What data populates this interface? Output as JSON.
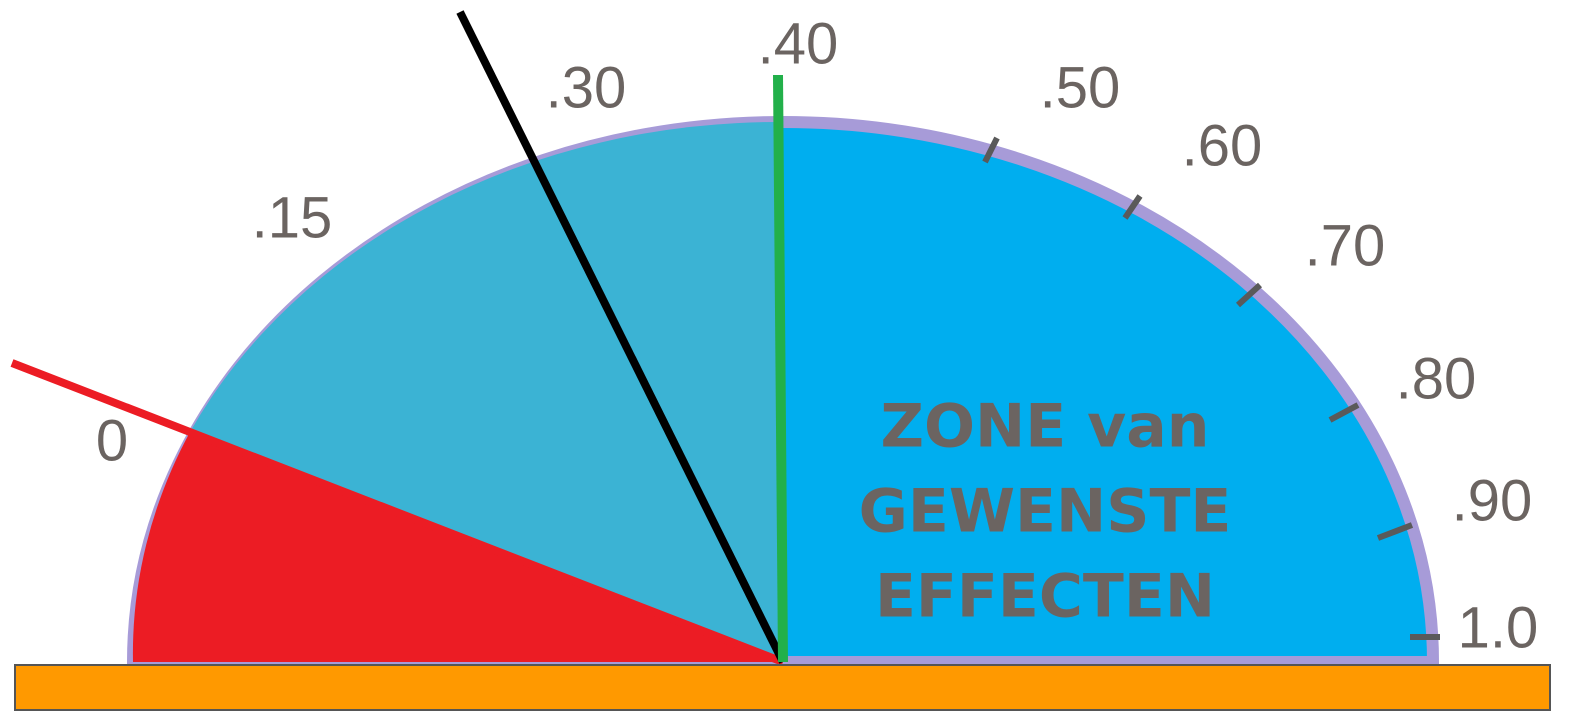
{
  "gauge": {
    "scale_labels": [
      "0",
      ".15",
      ".30",
      ".40",
      ".50",
      ".60",
      ".70",
      ".80",
      ".90",
      "1.0"
    ],
    "zone_label": [
      "ZONE van",
      "GEWENSTE",
      "EFFECTEN"
    ]
  }
}
